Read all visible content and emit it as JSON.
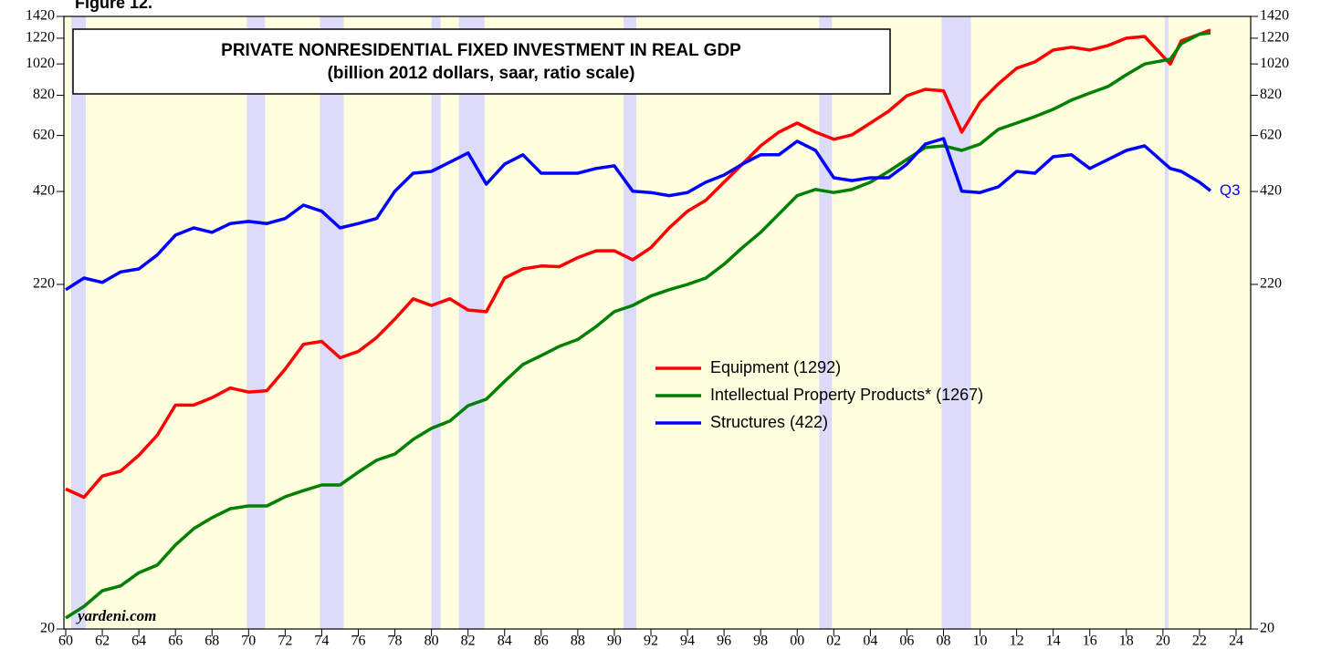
{
  "chart_data": {
    "type": "line",
    "figure_label": "Figure 12.",
    "title": "PRIVATE NONRESIDENTIAL FIXED INVESTMENT IN REAL GDP",
    "subtitle": "(billion 2012 dollars, saar, ratio scale)",
    "source": "yardeni.com",
    "annotation": "Q3",
    "log_scale": true,
    "ylim": [
      20,
      1420
    ],
    "yticks": [
      20,
      220,
      420,
      620,
      820,
      1020,
      1220,
      1420
    ],
    "xlim": [
      1959.9,
      2024.8
    ],
    "xticks": [
      {
        "value": 1960,
        "label": "60"
      },
      {
        "value": 1962,
        "label": "62"
      },
      {
        "value": 1964,
        "label": "64"
      },
      {
        "value": 1966,
        "label": "66"
      },
      {
        "value": 1968,
        "label": "68"
      },
      {
        "value": 1970,
        "label": "70"
      },
      {
        "value": 1972,
        "label": "72"
      },
      {
        "value": 1974,
        "label": "74"
      },
      {
        "value": 1976,
        "label": "76"
      },
      {
        "value": 1978,
        "label": "78"
      },
      {
        "value": 1980,
        "label": "80"
      },
      {
        "value": 1982,
        "label": "82"
      },
      {
        "value": 1984,
        "label": "84"
      },
      {
        "value": 1986,
        "label": "86"
      },
      {
        "value": 1988,
        "label": "88"
      },
      {
        "value": 1990,
        "label": "90"
      },
      {
        "value": 1992,
        "label": "92"
      },
      {
        "value": 1994,
        "label": "94"
      },
      {
        "value": 1996,
        "label": "96"
      },
      {
        "value": 1998,
        "label": "98"
      },
      {
        "value": 2000,
        "label": "00"
      },
      {
        "value": 2002,
        "label": "02"
      },
      {
        "value": 2004,
        "label": "04"
      },
      {
        "value": 2006,
        "label": "06"
      },
      {
        "value": 2008,
        "label": "08"
      },
      {
        "value": 2010,
        "label": "10"
      },
      {
        "value": 2012,
        "label": "12"
      },
      {
        "value": 2014,
        "label": "14"
      },
      {
        "value": 2016,
        "label": "16"
      },
      {
        "value": 2018,
        "label": "18"
      },
      {
        "value": 2020,
        "label": "20"
      },
      {
        "value": 2022,
        "label": "22"
      },
      {
        "value": 2024,
        "label": "24"
      }
    ],
    "shaded_periods": [
      [
        1960.3,
        1961.1
      ],
      [
        1969.9,
        1970.9
      ],
      [
        1973.9,
        1975.2
      ],
      [
        1980.0,
        1980.5
      ],
      [
        1981.5,
        1982.9
      ],
      [
        1990.5,
        1991.2
      ],
      [
        2001.2,
        2001.9
      ],
      [
        2007.9,
        2009.5
      ],
      [
        2020.1,
        2020.3
      ]
    ],
    "background_color": "#ffffe0",
    "shade_color": "#dcdcfa",
    "x": [
      1960,
      1961,
      1962,
      1963,
      1964,
      1965,
      1966,
      1967,
      1968,
      1969,
      1970,
      1971,
      1972,
      1973,
      1974,
      1975,
      1976,
      1977,
      1978,
      1979,
      1980,
      1981,
      1982,
      1983,
      1984,
      1985,
      1986,
      1987,
      1988,
      1989,
      1990,
      1991,
      1992,
      1993,
      1994,
      1995,
      1996,
      1997,
      1998,
      1999,
      2000,
      2001,
      2002,
      2003,
      2004,
      2005,
      2006,
      2007,
      2008,
      2009,
      2010,
      2011,
      2012,
      2013,
      2014,
      2015,
      2016,
      2017,
      2018,
      2019,
      2020.4,
      2021,
      2022,
      2022.6
    ],
    "series": [
      {
        "name": "Equipment (1292)",
        "color": "#ff0000",
        "values": [
          53,
          50,
          58,
          60,
          67,
          77,
          95,
          95,
          100,
          107,
          104,
          105,
          122,
          145,
          148,
          132,
          138,
          152,
          173,
          199,
          190,
          199,
          184,
          182,
          230,
          245,
          250,
          249,
          265,
          278,
          278,
          261,
          284,
          326,
          366,
          395,
          448,
          508,
          577,
          635,
          676,
          635,
          604,
          623,
          676,
          734,
          818,
          855,
          846,
          635,
          782,
          888,
          990,
          1035,
          1124,
          1146,
          1124,
          1160,
          1220,
          1235,
          1020,
          1197,
          1255,
          1292
        ]
      },
      {
        "name": "Intellectual Property Products* (1267)",
        "color": "#008000",
        "values": [
          21.6,
          23.4,
          26.1,
          27,
          29.6,
          31.2,
          35.9,
          40.2,
          43.4,
          46.2,
          47.1,
          47.1,
          50.2,
          52.4,
          54.5,
          54.5,
          59.6,
          64.7,
          67.6,
          74.8,
          80.8,
          85,
          94.6,
          99,
          112,
          126,
          134,
          143,
          150,
          164,
          182,
          190,
          203,
          212,
          220,
          230,
          253,
          284,
          316,
          359,
          408,
          426,
          417,
          426,
          448,
          483,
          525,
          570,
          577,
          559,
          584,
          647,
          676,
          707,
          744,
          793,
          833,
          872,
          946,
          1020,
          1054,
          1174,
          1255,
          1267
        ]
      },
      {
        "name": "Structures (422)",
        "color": "#0000ff",
        "values": [
          212,
          230,
          223,
          240,
          245,
          270,
          310,
          326,
          316,
          336,
          341,
          336,
          348,
          382,
          366,
          326,
          336,
          348,
          421,
          477,
          483,
          515,
          549,
          442,
          508,
          542,
          477,
          477,
          477,
          493,
          502,
          421,
          417,
          408,
          417,
          448,
          471,
          508,
          542,
          542,
          596,
          559,
          462,
          453,
          462,
          462,
          508,
          584,
          607,
          421,
          417,
          434,
          483,
          477,
          535,
          542,
          493,
          525,
          559,
          577,
          493,
          483,
          448,
          422
        ]
      }
    ]
  }
}
